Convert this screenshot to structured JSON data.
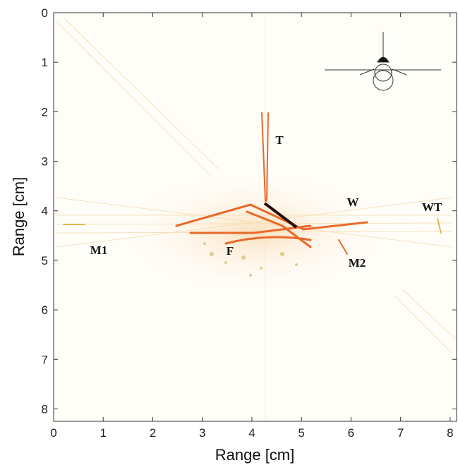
{
  "chart_data": {
    "type": "image",
    "x_label": "Range [cm]",
    "y_label": "Range [cm]",
    "xlim": [
      0,
      8.13
    ],
    "ylim": [
      0,
      8.25
    ],
    "y_reversed": true,
    "xticks": [
      0,
      1,
      2,
      3,
      4,
      5,
      6,
      7,
      8
    ],
    "yticks": [
      0,
      1,
      2,
      3,
      4,
      5,
      6,
      7,
      8
    ],
    "annotations": [
      "T",
      "W",
      "WT",
      "M1",
      "F",
      "M2"
    ]
  }
}
